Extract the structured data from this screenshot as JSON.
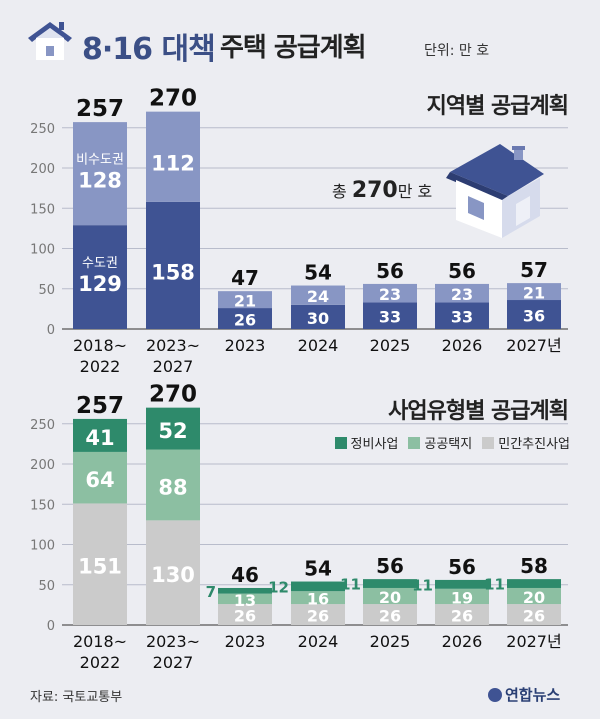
{
  "header": {
    "title_main": "8·16 대책",
    "title_rest": "주택 공급계획",
    "unit": "단위: 만 호"
  },
  "chart1": {
    "section_title": "지역별 공급계획",
    "callout": {
      "prefix": "총 ",
      "number": "270",
      "suffix": "만 호"
    }
  },
  "chart2": {
    "section_title": "사업유형별 공급계획"
  },
  "footer": {
    "source": "자료: 국토교통부",
    "logo": "연합뉴스"
  },
  "colors": {
    "dark_blue": "#3f5393",
    "light_blue": "#8896c4",
    "dark_green": "#2e8a6b",
    "light_green": "#8cbfa2",
    "gray": "#cbcbcb"
  },
  "chart_data": [
    {
      "type": "bar",
      "stacked": true,
      "title": "지역별 공급계획",
      "categories": [
        "2018~\n2022",
        "2023~\n2027",
        "2023",
        "2024",
        "2025",
        "2026",
        "2027년"
      ],
      "series": [
        {
          "name": "수도권",
          "values": [
            129,
            158,
            26,
            30,
            33,
            33,
            36
          ],
          "color": "#3f5393"
        },
        {
          "name": "비수도권",
          "values": [
            128,
            112,
            21,
            24,
            23,
            23,
            21
          ],
          "color": "#8896c4"
        }
      ],
      "totals": [
        257,
        270,
        47,
        54,
        56,
        56,
        57
      ],
      "ylim": [
        0,
        270
      ],
      "yticks": [
        0,
        50,
        100,
        150,
        200,
        250
      ],
      "grid": true
    },
    {
      "type": "bar",
      "stacked": true,
      "title": "사업유형별 공급계획",
      "categories": [
        "2018~\n2022",
        "2023~\n2027",
        "2023",
        "2024",
        "2025",
        "2026",
        "2027년"
      ],
      "series": [
        {
          "name": "민간추진사업",
          "values": [
            151,
            130,
            26,
            26,
            26,
            26,
            26
          ],
          "color": "#cbcbcb"
        },
        {
          "name": "공공택지",
          "values": [
            64,
            88,
            13,
            16,
            20,
            19,
            20
          ],
          "color": "#8cbfa2"
        },
        {
          "name": "정비사업",
          "values": [
            41,
            52,
            7,
            12,
            11,
            11,
            11
          ],
          "color": "#2e8a6b"
        }
      ],
      "totals": [
        257,
        270,
        46,
        54,
        56,
        56,
        58
      ],
      "ylim": [
        0,
        270
      ],
      "yticks": [
        0,
        50,
        100,
        150,
        200,
        250
      ],
      "legend": [
        "정비사업",
        "공공택지",
        "민간추진사업"
      ],
      "legend_position": "top-right",
      "grid": true
    }
  ]
}
